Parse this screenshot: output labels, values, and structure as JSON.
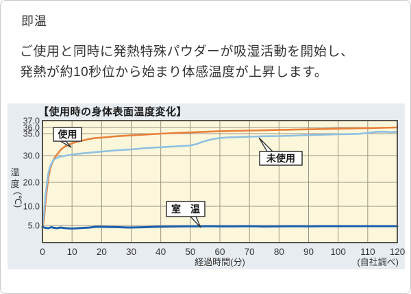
{
  "page": {
    "heading": "即温",
    "description_lines": [
      "ご使用と同時に発熱特殊パウダーが吸湿活動を開始し、",
      "発熱が約10秒位から始まり体感温度が上昇します。"
    ]
  },
  "chart_data": {
    "type": "line",
    "title": "【使用時の身体表面温度変化】",
    "xlabel": "経過時間(分)",
    "ylabel": "温度(℃)",
    "ylabel_chars": [
      "温",
      "度"
    ],
    "ylabel_unit": "(℃)",
    "source_note": "(自社調べ)",
    "x_range": [
      0,
      120
    ],
    "x_ticks": [
      0,
      10,
      20,
      30,
      40,
      50,
      60,
      70,
      80,
      90,
      100,
      110,
      120
    ],
    "y_ticks": [
      {
        "v": 37,
        "label": "37.0"
      },
      {
        "v": 36,
        "label": "36.0"
      },
      {
        "v": 35,
        "label": "35.0"
      },
      {
        "v": 30,
        "label": "30.0"
      },
      {
        "v": 20,
        "label": "20.0"
      },
      {
        "v": 10,
        "label": "10.0"
      },
      {
        "v": 5,
        "label": "5.0"
      }
    ],
    "y_axis_note": "non-linear compressed temperature scale (5,10,20,30,35,36,37)",
    "grid": true,
    "series": [
      {
        "name": "使用",
        "color": "#e8813b",
        "width": 2.6,
        "points": [
          [
            0,
            4.2
          ],
          [
            0.5,
            6.5
          ],
          [
            1,
            11
          ],
          [
            1.5,
            17
          ],
          [
            2,
            21.5
          ],
          [
            2.5,
            24.5
          ],
          [
            3,
            26.5
          ],
          [
            4,
            29
          ],
          [
            5,
            30.3
          ],
          [
            6,
            31.2
          ],
          [
            7,
            31.8
          ],
          [
            8,
            32.2
          ],
          [
            9,
            32.5
          ],
          [
            10,
            32.8
          ],
          [
            12,
            33.2
          ],
          [
            14,
            33.5
          ],
          [
            16,
            33.8
          ],
          [
            18,
            34.0
          ],
          [
            20,
            34.1
          ],
          [
            25,
            34.4
          ],
          [
            30,
            34.6
          ],
          [
            35,
            34.8
          ],
          [
            40,
            35.0
          ],
          [
            45,
            35.1
          ],
          [
            50,
            35.2
          ],
          [
            55,
            35.3
          ],
          [
            60,
            35.4
          ],
          [
            70,
            35.5
          ],
          [
            80,
            35.6
          ],
          [
            90,
            35.7
          ],
          [
            100,
            35.8
          ],
          [
            110,
            35.9
          ],
          [
            120,
            36.0
          ]
        ]
      },
      {
        "name": "未使用",
        "color": "#8fc0e0",
        "width": 2.6,
        "points": [
          [
            0,
            4.5
          ],
          [
            0.5,
            8
          ],
          [
            1,
            14
          ],
          [
            1.5,
            19.5
          ],
          [
            2,
            23.5
          ],
          [
            2.5,
            25.5
          ],
          [
            3,
            27
          ],
          [
            4,
            28.6
          ],
          [
            5,
            29.2
          ],
          [
            6,
            29.6
          ],
          [
            7,
            29.8
          ],
          [
            8,
            30.0
          ],
          [
            10,
            30.2
          ],
          [
            12,
            30.4
          ],
          [
            15,
            30.6
          ],
          [
            18,
            30.8
          ],
          [
            20,
            30.9
          ],
          [
            25,
            31.2
          ],
          [
            30,
            31.4
          ],
          [
            35,
            31.7
          ],
          [
            40,
            31.9
          ],
          [
            45,
            32.1
          ],
          [
            50,
            32.3
          ],
          [
            52,
            32.6
          ],
          [
            54,
            33.1
          ],
          [
            56,
            33.5
          ],
          [
            58,
            33.8
          ],
          [
            60,
            34.0
          ],
          [
            63,
            34.15
          ],
          [
            66,
            34.2
          ],
          [
            70,
            34.3
          ],
          [
            75,
            34.4
          ],
          [
            80,
            34.45
          ],
          [
            85,
            34.55
          ],
          [
            90,
            34.65
          ],
          [
            95,
            34.75
          ],
          [
            100,
            34.85
          ],
          [
            104,
            34.9
          ],
          [
            107,
            34.95
          ],
          [
            110,
            35.1
          ],
          [
            113,
            35.3
          ],
          [
            116,
            35.3
          ],
          [
            118,
            35.25
          ],
          [
            120,
            35.3
          ]
        ]
      },
      {
        "name": "室温",
        "color": "#1a5fae",
        "width": 3,
        "points": [
          [
            0,
            4.6
          ],
          [
            1,
            4.3
          ],
          [
            2,
            4.2
          ],
          [
            3,
            4.5
          ],
          [
            4,
            4.3
          ],
          [
            5,
            4.2
          ],
          [
            6,
            4.4
          ],
          [
            7,
            4.3
          ],
          [
            8,
            4.2
          ],
          [
            10,
            4.1
          ],
          [
            12,
            4.2
          ],
          [
            14,
            4.3
          ],
          [
            16,
            4.4
          ],
          [
            18,
            4.6
          ],
          [
            20,
            4.6
          ],
          [
            23,
            4.55
          ],
          [
            26,
            4.5
          ],
          [
            29,
            4.4
          ],
          [
            32,
            4.45
          ],
          [
            35,
            4.5
          ],
          [
            38,
            4.6
          ],
          [
            41,
            4.65
          ],
          [
            44,
            4.7
          ],
          [
            48,
            4.75
          ],
          [
            52,
            4.75
          ],
          [
            56,
            4.8
          ],
          [
            60,
            4.75
          ],
          [
            65,
            4.75
          ],
          [
            70,
            4.8
          ],
          [
            75,
            4.7
          ],
          [
            80,
            4.75
          ],
          [
            85,
            4.8
          ],
          [
            90,
            4.75
          ],
          [
            95,
            4.8
          ],
          [
            100,
            4.8
          ],
          [
            105,
            4.8
          ],
          [
            110,
            4.8
          ],
          [
            115,
            4.8
          ],
          [
            120,
            4.8
          ]
        ]
      }
    ],
    "annotations": [
      {
        "label": "使用"
      },
      {
        "label": "未使用"
      },
      {
        "label": "室　温"
      }
    ],
    "colors": {
      "plot_bg": "#fcf7db",
      "panel_bg": "#e7ecf1",
      "grid": "#9b9384",
      "plot_border": "#55534c",
      "annotation_border": "#333333",
      "annotation_bg": "#ffffff",
      "series_used": "#e8813b",
      "series_unused": "#8fc0e0",
      "series_room": "#1a5fae"
    }
  }
}
